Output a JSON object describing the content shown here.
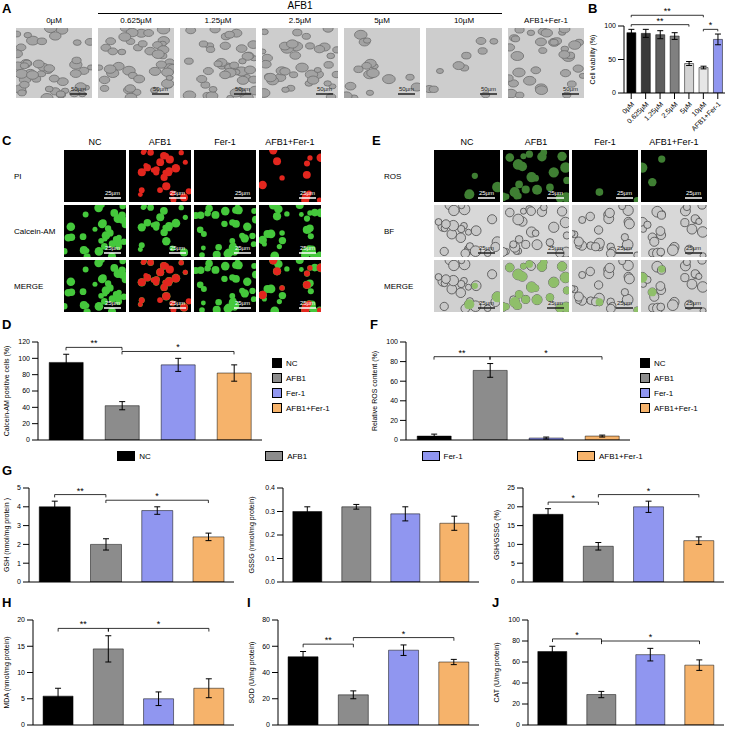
{
  "image_panels": {
    "A": {
      "panel": "A",
      "header": "AFB1",
      "header_span": [
        "0.625µM",
        "10µM"
      ],
      "columns": [
        "0µM",
        "0.625µM",
        "1.25µM",
        "2.5µM",
        "5µM",
        "10µM",
        "AFB1+Fer-1"
      ],
      "scale_bar": "50µm"
    },
    "C": {
      "panel": "C",
      "rows": [
        "PI",
        "Calcein-AM",
        "MERGE"
      ],
      "columns": [
        "NC",
        "AFB1",
        "Fer-1",
        "AFB1+Fer-1"
      ],
      "scale_bar": "25µm"
    },
    "E": {
      "panel": "E",
      "rows": [
        "ROS",
        "BF",
        "MERGE"
      ],
      "columns": [
        "NC",
        "AFB1",
        "Fer-1",
        "AFB1+Fer-1"
      ],
      "scale_bar": "25µm"
    }
  },
  "chart_data": [
    {
      "panel": "B",
      "type": "bar",
      "categories": [
        "0µM",
        "0.625µM",
        "1.25µM",
        "2.5µM",
        "5µM",
        "10µM",
        "AFB1+Fer-1"
      ],
      "values": [
        90,
        89,
        87,
        85,
        44,
        38,
        80
      ],
      "errors": [
        5,
        6,
        6,
        5,
        3,
        2,
        8
      ],
      "colors": [
        "#000000",
        "#3a3a3a",
        "#5e5e5e",
        "#808080",
        "#d4d4d4",
        "#e6e6e6",
        "#9096f0"
      ],
      "ylim": [
        0,
        100
      ],
      "yticks": [
        0,
        50,
        100
      ],
      "y_label": "Cell viability (%)",
      "annotations": [
        {
          "label": "**",
          "from": "0µM",
          "to": "5µM"
        },
        {
          "label": "**",
          "from": "0µM",
          "to": "10µM"
        },
        {
          "label": "*",
          "from": "10µM",
          "to": "AFB1+Fer-1"
        }
      ]
    },
    {
      "panel": "D",
      "type": "bar",
      "categories": [
        "NC",
        "AFB1",
        "Fer-1",
        "AFB1+Fer-1"
      ],
      "values": [
        95,
        42,
        92,
        82
      ],
      "errors": [
        10,
        5,
        8,
        10
      ],
      "colors": [
        "#000000",
        "#8c8c8c",
        "#9096f0",
        "#f6b36b"
      ],
      "ylim": [
        0,
        120
      ],
      "yticks": [
        0,
        20,
        40,
        60,
        80,
        100,
        120
      ],
      "y_label": "Calcein-AM positive cells (%)",
      "annotations": [
        {
          "label": "**",
          "from": "NC",
          "to": "AFB1"
        },
        {
          "label": "*",
          "from": "AFB1",
          "to": "AFB1+Fer-1"
        }
      ],
      "legend": "right",
      "tick_labels": "y"
    },
    {
      "panel": "F",
      "type": "bar",
      "categories": [
        "NC",
        "AFB1",
        "Fer-1",
        "AFB1+Fer-1"
      ],
      "values": [
        4,
        71,
        2,
        4
      ],
      "errors": [
        2,
        7,
        1,
        1
      ],
      "colors": [
        "#000000",
        "#8c8c8c",
        "#9096f0",
        "#f6b36b"
      ],
      "ylim": [
        0,
        100
      ],
      "yticks": [
        0,
        20,
        40,
        60,
        80,
        100
      ],
      "y_label": "Relative ROS content (%)",
      "annotations": [
        {
          "label": "**",
          "from": "NC",
          "to": "AFB1"
        },
        {
          "label": "*",
          "from": "AFB1",
          "to": "AFB1+Fer-1"
        }
      ],
      "legend": "right",
      "tick_labels": "y"
    },
    {
      "panel": "G",
      "type": "bar",
      "categories": [
        "NC",
        "AFB1",
        "Fer-1",
        "AFB1+Fer-1"
      ],
      "values": [
        4.0,
        2.0,
        3.8,
        2.4
      ],
      "errors": [
        0.3,
        0.3,
        0.2,
        0.2
      ],
      "colors": [
        "#000000",
        "#8c8c8c",
        "#9096f0",
        "#f6b36b"
      ],
      "ylim": [
        0,
        5
      ],
      "yticks": [
        0,
        1,
        2,
        3,
        4,
        5
      ],
      "y_label": "GSH (nmol/mg protein )",
      "annotations": [
        {
          "label": "**",
          "from": "NC",
          "to": "AFB1"
        },
        {
          "label": "*",
          "from": "AFB1",
          "to": "AFB1+Fer-1"
        }
      ],
      "legend": "top",
      "tick_labels": "y"
    },
    {
      "type": "bar",
      "categories": [
        "NC",
        "AFB1",
        "Fer-1",
        "AFB1+Fer-1"
      ],
      "values": [
        0.3,
        0.32,
        0.29,
        0.25
      ],
      "errors": [
        0.02,
        0.01,
        0.03,
        0.03
      ],
      "colors": [
        "#000000",
        "#8c8c8c",
        "#9096f0",
        "#f6b36b"
      ],
      "ylim": [
        0,
        0.4
      ],
      "yticks": [
        {
          "value": 0,
          "label": "0.0"
        },
        0.1,
        0.2,
        0.3,
        0.4
      ],
      "y_label": "GSSG (nmol/mg protein)",
      "tick_labels": "y"
    },
    {
      "type": "bar",
      "categories": [
        "NC",
        "AFB1",
        "Fer-1",
        "AFB1+Fer-1"
      ],
      "values": [
        18,
        9.5,
        20,
        11
      ],
      "errors": [
        1.5,
        1,
        1.5,
        1
      ],
      "colors": [
        "#000000",
        "#8c8c8c",
        "#9096f0",
        "#f6b36b"
      ],
      "ylim": [
        0,
        25
      ],
      "yticks": [
        0,
        5,
        10,
        15,
        20,
        25
      ],
      "y_label": "GSH/GSSG (%)",
      "annotations": [
        {
          "label": "*",
          "from": "NC",
          "to": "AFB1"
        },
        {
          "label": "*",
          "from": "AFB1",
          "to": "AFB1+Fer-1"
        }
      ],
      "tick_labels": "y"
    },
    {
      "panel": "H",
      "type": "bar",
      "categories": [
        "NC",
        "AFB1",
        "Fer-1",
        "AFB1+Fer-1"
      ],
      "values": [
        5.5,
        14.5,
        5,
        7
      ],
      "errors": [
        1.5,
        2.5,
        1.3,
        1.8
      ],
      "colors": [
        "#000000",
        "#8c8c8c",
        "#9096f0",
        "#f6b36b"
      ],
      "ylim": [
        0,
        20
      ],
      "yticks": [
        0,
        5,
        10,
        15,
        20
      ],
      "y_label": "MDA (nmol/mg protein)",
      "annotations": [
        {
          "label": "**",
          "from": "NC",
          "to": "AFB1"
        },
        {
          "label": "*",
          "from": "AFB1",
          "to": "AFB1+Fer-1"
        }
      ],
      "tick_labels": "y"
    },
    {
      "panel": "I",
      "type": "bar",
      "categories": [
        "NC",
        "AFB1",
        "Fer-1",
        "AFB1+Fer-1"
      ],
      "values": [
        52,
        23,
        57,
        48
      ],
      "errors": [
        4,
        3,
        4,
        2
      ],
      "colors": [
        "#000000",
        "#8c8c8c",
        "#9096f0",
        "#f6b36b"
      ],
      "ylim": [
        0,
        80
      ],
      "yticks": [
        0,
        20,
        40,
        60,
        80
      ],
      "y_label": "SOD (U/mg protein)",
      "annotations": [
        {
          "label": "**",
          "from": "NC",
          "to": "AFB1"
        },
        {
          "label": "*",
          "from": "AFB1",
          "to": "AFB1+Fer-1"
        }
      ],
      "tick_labels": "y"
    },
    {
      "panel": "J",
      "type": "bar",
      "categories": [
        "NC",
        "AFB1",
        "Fer-1",
        "AFB1+Fer-1"
      ],
      "values": [
        70,
        29,
        67,
        57
      ],
      "errors": [
        5,
        3,
        6,
        5
      ],
      "colors": [
        "#000000",
        "#8c8c8c",
        "#9096f0",
        "#f6b36b"
      ],
      "ylim": [
        0,
        100
      ],
      "yticks": [
        0,
        20,
        40,
        60,
        80,
        100
      ],
      "y_label": "CAT (U/mg protein)",
      "annotations": [
        {
          "label": "*",
          "from": "NC",
          "to": "AFB1"
        },
        {
          "label": "*",
          "from": "AFB1",
          "to": "AFB1+Fer-1"
        }
      ],
      "tick_labels": "y"
    }
  ]
}
